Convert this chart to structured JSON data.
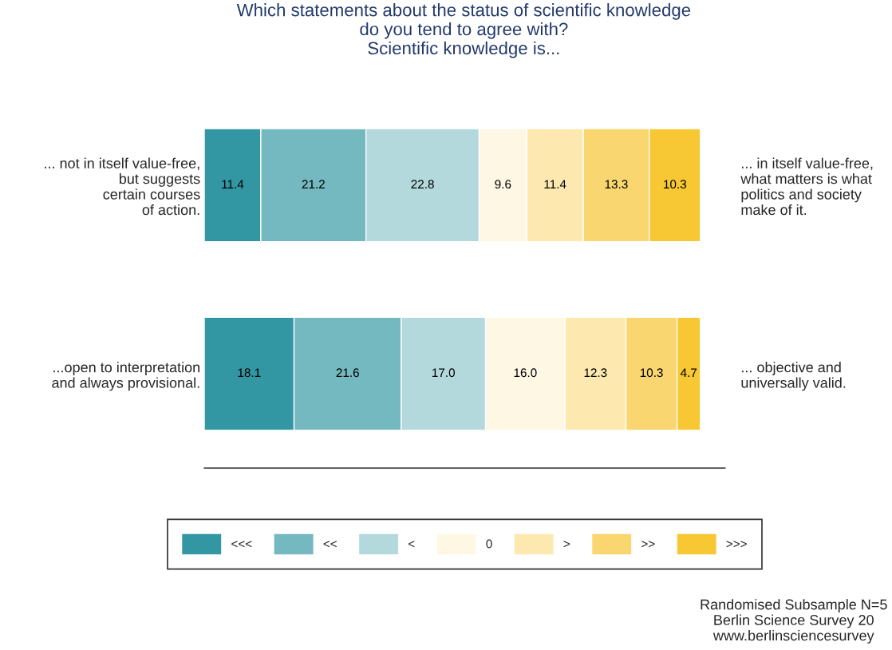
{
  "chart_data": {
    "type": "bar",
    "orientation": "horizontal",
    "stacked": true,
    "title": "Which statements about the status of scientific knowledge\ndo you tend to agree with?\nScientific knowledge is...",
    "categories": [
      "... not in itself value-free,\nbut suggests\ncertain courses\nof action.",
      "...open to interpretation\nand always provisional."
    ],
    "y2_categories": [
      "... in itself value-free,\nwhat matters is what\npolitics and society\nmake of it.",
      "... objective and\nuniversally valid."
    ],
    "series": [
      {
        "name": "<<<",
        "color": "#3297a3",
        "values": [
          11.4,
          18.1
        ],
        "value_labels": [
          "11.4",
          "18.1"
        ]
      },
      {
        "name": "<<",
        "color": "#74b8c0",
        "values": [
          21.2,
          21.6
        ],
        "value_labels": [
          "21.2",
          "21.6"
        ]
      },
      {
        "name": "<",
        "color": "#b3d9dc",
        "values": [
          22.8,
          17.0
        ],
        "value_labels": [
          "22.8",
          "17.0"
        ]
      },
      {
        "name": "0",
        "color": "#fef7e4",
        "values": [
          9.6,
          16.0
        ],
        "value_labels": [
          "9.6",
          "16.0"
        ]
      },
      {
        "name": ">",
        "color": "#fde9b0",
        "values": [
          11.4,
          12.3
        ],
        "value_labels": [
          "11.4",
          "12.3"
        ]
      },
      {
        "name": ">>",
        "color": "#f9d66f",
        "values": [
          13.3,
          10.3
        ],
        "value_labels": [
          "13.3",
          "10.3"
        ]
      },
      {
        "name": ">>>",
        "color": "#f7c833",
        "values": [
          10.3,
          4.7
        ],
        "value_labels": [
          "10.3",
          "4.7"
        ]
      }
    ],
    "xlim": [
      0,
      105
    ],
    "tick_labels": "y",
    "legend": "bottom",
    "grid": false,
    "annotations": [
      "Randomised Subsample N=5\nBerlin Science Survey 20\nwww.berlinsciencesurvey"
    ]
  }
}
